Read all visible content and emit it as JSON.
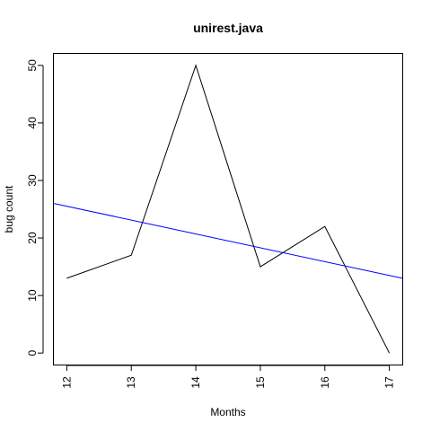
{
  "chart_data": {
    "type": "line",
    "title": "unirest.java",
    "xlabel": "Months",
    "ylabel": "bug count",
    "x": [
      12,
      13,
      14,
      15,
      16,
      17
    ],
    "series": [
      {
        "values": [
          13,
          17,
          50,
          15,
          22,
          0
        ],
        "color": "#000000"
      }
    ],
    "trend_line": {
      "start": [
        11.8,
        26
      ],
      "end": [
        17.2,
        13
      ],
      "color": "#0000ff"
    },
    "xlim": [
      11.8,
      17.2
    ],
    "ylim": [
      -2,
      52
    ],
    "xticks": [
      "12",
      "13",
      "14",
      "15",
      "16",
      "17"
    ],
    "yticks": [
      "0",
      "10",
      "20",
      "30",
      "40",
      "50"
    ],
    "grid": false,
    "legend": "none"
  }
}
